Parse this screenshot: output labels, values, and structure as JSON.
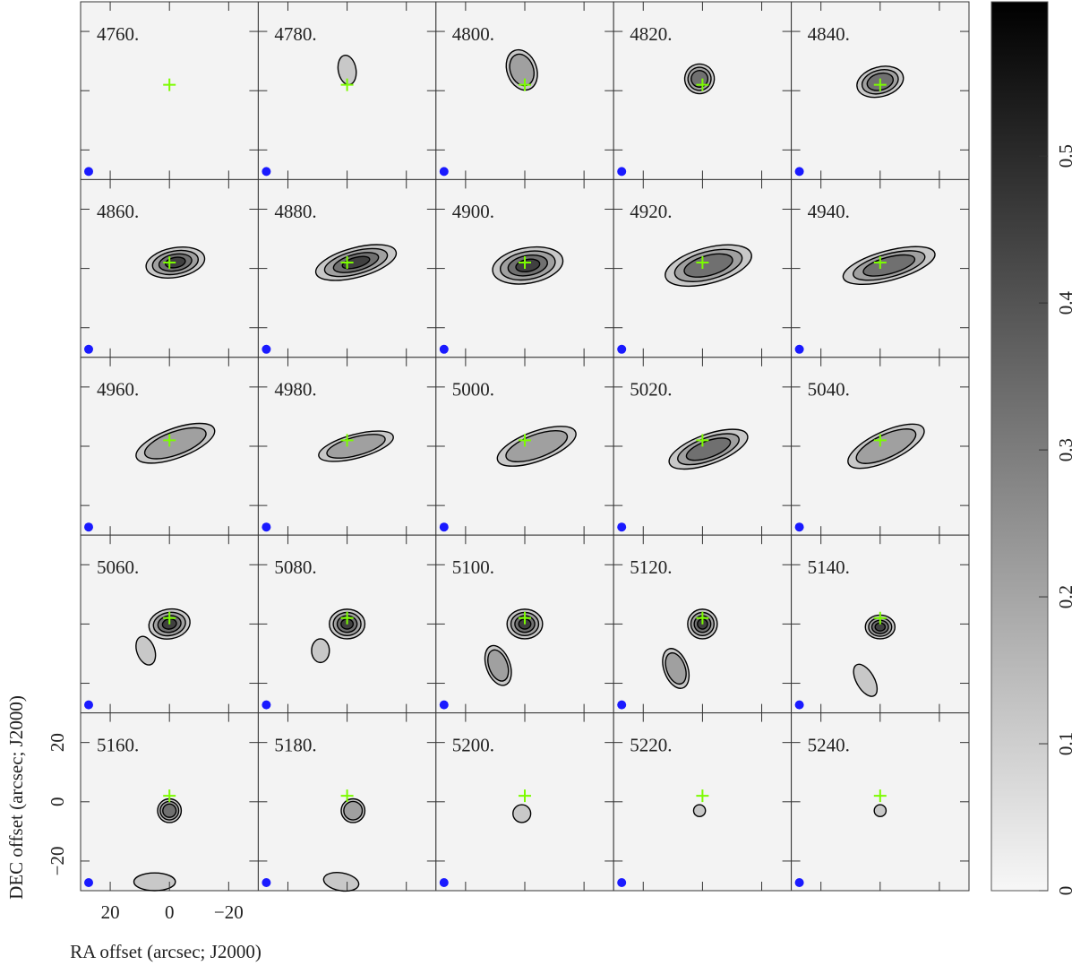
{
  "chart_data": {
    "type": "channel-map",
    "channels": [
      "4760.",
      "4780.",
      "4800.",
      "4820.",
      "4840.",
      "4860.",
      "4880.",
      "4900.",
      "4920.",
      "4940.",
      "4960.",
      "4980.",
      "5000.",
      "5020.",
      "5040.",
      "5060.",
      "5080.",
      "5100.",
      "5120.",
      "5140.",
      "5160.",
      "5180.",
      "5200.",
      "5220.",
      "5240."
    ],
    "x_label": "RA offset (arcsec; J2000)",
    "y_label": "DEC offset (arcsec; J2000)",
    "xlim": [
      30,
      -30
    ],
    "xticks": [
      20,
      0,
      {
        "value": -20,
        "label": "−20"
      }
    ],
    "ylim": [
      -30,
      30
    ],
    "yticks": [
      {
        "value": -20,
        "label": "−20"
      },
      0,
      20
    ],
    "clim": [
      0,
      0.605
    ],
    "cticks": [
      0,
      0.1,
      0.2,
      0.3,
      0.4,
      0.5
    ]
  }
}
